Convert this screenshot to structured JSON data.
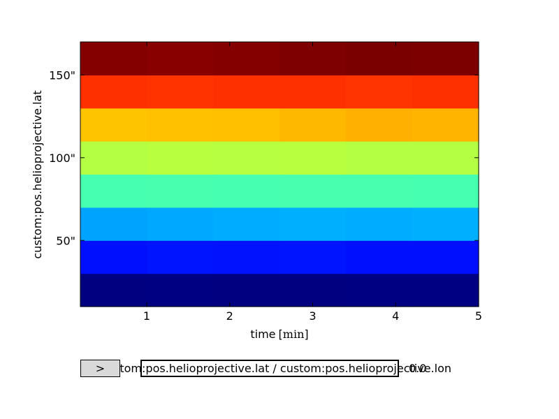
{
  "chart_data": {
    "type": "heatmap",
    "title": "",
    "xlabel": "time",
    "xlabel_unit": "min",
    "ylabel": "custom:pos.helioprojective.lat",
    "xlim": [
      0.2,
      5
    ],
    "ylim": [
      10,
      170
    ],
    "x_ticks": [
      1,
      2,
      3,
      4,
      5
    ],
    "x_tick_labels": [
      "1",
      "2",
      "3",
      "4",
      "5"
    ],
    "y_ticks": [
      50,
      100,
      150
    ],
    "y_tick_labels": [
      "50\"",
      "100\"",
      "150\""
    ],
    "x_edges": [
      0.2,
      1.0,
      1.8,
      2.6,
      3.4,
      4.2,
      5.0
    ],
    "y_edges": [
      10,
      30,
      50,
      70,
      90,
      110,
      130,
      150,
      170
    ],
    "colormap": "jet",
    "grid": false,
    "values": [
      [
        0.0,
        0.0,
        0.0,
        0.0,
        0.0,
        0.0
      ],
      [
        0.17,
        0.17,
        0.17,
        0.17,
        0.17,
        0.17
      ],
      [
        0.32,
        0.31,
        0.32,
        0.31,
        0.32,
        0.32
      ],
      [
        0.45,
        0.45,
        0.45,
        0.45,
        0.45,
        0.45
      ],
      [
        0.62,
        0.62,
        0.62,
        0.62,
        0.62,
        0.62
      ],
      [
        0.78,
        0.77,
        0.78,
        0.79,
        0.8,
        0.8
      ],
      [
        0.91,
        0.91,
        0.91,
        0.91,
        0.91,
        0.91
      ],
      [
        1.0,
        0.99,
        1.0,
        1.0,
        1.0,
        1.0
      ]
    ],
    "colors": [
      [
        "#000080",
        "#000082",
        "#000081",
        "#000080",
        "#000083",
        "#000082"
      ],
      [
        "#0010ff",
        "#0014ff",
        "#0012ff",
        "#0014ff",
        "#0010ff",
        "#0010ff"
      ],
      [
        "#00a4ff",
        "#00a8ff",
        "#00acff",
        "#00b0ff",
        "#00acff",
        "#00b0ff"
      ],
      [
        "#46ffb1",
        "#48ffaf",
        "#46ffb1",
        "#48ffaf",
        "#48ffaf",
        "#46ffb1"
      ],
      [
        "#b4ff43",
        "#b8ff3f",
        "#b6ff41",
        "#b8ff3f",
        "#b4ff43",
        "#b4ff43"
      ],
      [
        "#ffc400",
        "#ffc100",
        "#ffc000",
        "#ffb800",
        "#ffb000",
        "#ffb400"
      ],
      [
        "#ff3000",
        "#ff3300",
        "#ff3000",
        "#ff3000",
        "#ff3400",
        "#ff3000"
      ],
      [
        "#840000",
        "#880000",
        "#840000",
        "#7f0000",
        "#7a0000",
        "#7c0000"
      ]
    ]
  },
  "slider": {
    "button_label": ">",
    "label": "custom:pos.helioprojective.lat / custom:pos.helioprojective.lon",
    "value": "0.0"
  }
}
